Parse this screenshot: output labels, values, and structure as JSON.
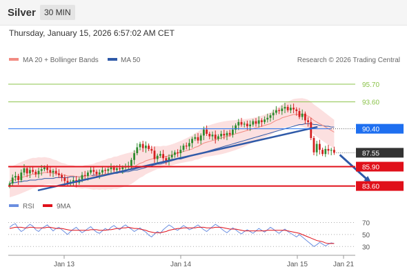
{
  "header": {
    "instrument": "Silver",
    "timeframe": "30 MIN",
    "datetime": "Thursday, January 15, 2026 6:57:02 AM CET"
  },
  "legend": {
    "ma20_label": "MA 20 + Bollinger Bands",
    "ma50_label": "MA 50",
    "credit": "Research © 2026 Trading Central",
    "rsi_label": "RSI",
    "rsi_ma_label": "9MA"
  },
  "colors": {
    "up": "#2e8b2e",
    "down": "#d42020",
    "ma20": "#f28b82",
    "ma50": "#2f5aa8",
    "resistance": "#8bc34a",
    "support": "#e0101a",
    "pivot": "#1e6ff0",
    "current": "#333333",
    "bollinger": "#fbd5d5",
    "rsi": "#6b8ee0",
    "rsi_ma": "#e0101a"
  },
  "chart_data": [
    {
      "type": "candlestick",
      "xtick_labels": [
        "Jan 13",
        "Jan 14",
        "Jan 15",
        "Jan 21"
      ],
      "ylim": [
        82.5,
        97.5
      ],
      "levels": [
        {
          "name": "resistance-2",
          "value": 95.7,
          "label": "95.70",
          "kind": "resistance"
        },
        {
          "name": "resistance-1",
          "value": 93.6,
          "label": "93.60",
          "kind": "resistance"
        },
        {
          "name": "pivot",
          "value": 90.4,
          "label": "90.40",
          "kind": "pivot"
        },
        {
          "name": "current-price",
          "value": 87.55,
          "label": "87.55",
          "kind": "current"
        },
        {
          "name": "support-1",
          "value": 85.9,
          "label": "85.90",
          "kind": "support"
        },
        {
          "name": "support-2",
          "value": 83.6,
          "label": "83.60",
          "kind": "support"
        }
      ],
      "closes": [
        83.9,
        84.6,
        84.8,
        84.3,
        85.2,
        85.7,
        85.1,
        85.5,
        85.3,
        85.0,
        85.4,
        85.6,
        85.8,
        85.5,
        85.2,
        85.4,
        85.1,
        84.9,
        84.6,
        84.2,
        83.9,
        84.1,
        84.3,
        84.0,
        84.4,
        84.9,
        84.8,
        85.2,
        85.5,
        85.3,
        85.0,
        85.2,
        85.5,
        85.4,
        85.6,
        85.8,
        85.5,
        85.7,
        85.6,
        85.8,
        85.9,
        86.0,
        86.7,
        87.5,
        88.2,
        88.6,
        88.1,
        88.4,
        88.0,
        87.8,
        86.8,
        87.2,
        87.4,
        86.9,
        86.6,
        87.0,
        87.3,
        87.6,
        87.5,
        87.9,
        88.4,
        88.3,
        88.7,
        89.2,
        89.4,
        89.0,
        89.6,
        90.3,
        89.8,
        89.5,
        89.7,
        89.2,
        89.5,
        89.8,
        89.6,
        89.9,
        89.7,
        90.3,
        90.8,
        91.2,
        90.9,
        91.0,
        90.7,
        90.9,
        91.3,
        91.0,
        91.4,
        91.2,
        91.5,
        91.7,
        92.0,
        92.3,
        92.6,
        92.5,
        92.8,
        93.0,
        92.6,
        92.9,
        92.7,
        92.5,
        91.8,
        92.2,
        91.4,
        91.2,
        89.3,
        87.6,
        88.6,
        87.9,
        87.4,
        88.0,
        87.8,
        87.9,
        87.55
      ],
      "ma20": [
        84.2,
        84.3,
        84.4,
        84.5,
        84.6,
        84.7,
        84.8,
        84.9,
        85.0,
        85.0,
        85.1,
        85.1,
        85.2,
        85.2,
        85.2,
        85.1,
        85.1,
        85.0,
        84.9,
        84.9,
        84.8,
        84.8,
        84.8,
        84.7,
        84.7,
        84.7,
        84.8,
        84.8,
        84.8,
        84.8,
        84.9,
        84.9,
        85.0,
        85.0,
        85.1,
        85.1,
        85.2,
        85.2,
        85.3,
        85.4,
        85.5,
        85.6,
        85.7,
        85.9,
        86.1,
        86.3,
        86.4,
        86.6,
        86.7,
        86.8,
        86.9,
        87.0,
        87.0,
        87.1,
        87.1,
        87.2,
        87.3,
        87.4,
        87.5,
        87.6,
        87.7,
        87.8,
        87.9,
        88.0,
        88.2,
        88.3,
        88.5,
        88.7,
        88.8,
        88.9,
        89.0,
        89.1,
        89.2,
        89.3,
        89.4,
        89.5,
        89.6,
        89.7,
        89.8,
        89.9,
        90.0,
        90.1,
        90.2,
        90.3,
        90.4,
        90.5,
        90.6,
        90.7,
        90.8,
        90.9,
        91.0,
        91.2,
        91.4,
        91.5,
        91.7,
        91.8,
        91.9,
        92.0,
        92.1,
        92.1,
        92.1,
        92.1,
        92.0,
        91.9,
        91.7,
        91.4,
        91.2,
        91.0,
        90.8,
        90.6,
        90.4,
        90.2,
        90.0
      ],
      "ma50": [
        83.9,
        84.0,
        84.0,
        84.1,
        84.1,
        84.2,
        84.2,
        84.3,
        84.3,
        84.3,
        84.4,
        84.4,
        84.5,
        84.5,
        84.5,
        84.5,
        84.6,
        84.6,
        84.6,
        84.6,
        84.6,
        84.7,
        84.7,
        84.7,
        84.7,
        84.7,
        84.8,
        84.8,
        84.8,
        84.9,
        84.9,
        84.9,
        85.0,
        85.0,
        85.0,
        85.1,
        85.1,
        85.1,
        85.2,
        85.2,
        85.3,
        85.3,
        85.4,
        85.5,
        85.5,
        85.6,
        85.7,
        85.8,
        85.9,
        86.0,
        86.1,
        86.2,
        86.2,
        86.3,
        86.4,
        86.5,
        86.6,
        86.7,
        86.8,
        86.8,
        86.9,
        87.0,
        87.1,
        87.2,
        87.3,
        87.4,
        87.5,
        87.6,
        87.7,
        87.8,
        87.9,
        88.0,
        88.1,
        88.2,
        88.3,
        88.4,
        88.5,
        88.6,
        88.7,
        88.8,
        88.9,
        89.0,
        89.1,
        89.2,
        89.3,
        89.4,
        89.5,
        89.6,
        89.7,
        89.8,
        89.9,
        90.0,
        90.1,
        90.2,
        90.3,
        90.4,
        90.5,
        90.6,
        90.7,
        90.8,
        90.9,
        90.9,
        91.0,
        91.0,
        91.0,
        90.9,
        90.9,
        90.8,
        90.8,
        90.7,
        90.7,
        90.6,
        90.6
      ],
      "bollinger_width": 1.6,
      "trendline": {
        "from": {
          "index": 10,
          "value": 83.1
        },
        "to": {
          "index": 106,
          "value": 90.6
        }
      },
      "forecast_arrow": {
        "from": {
          "index": 113,
          "value": 87.55
        },
        "to": {
          "index": 125,
          "value": 83.7
        }
      }
    },
    {
      "type": "line",
      "name": "rsi-panel",
      "yticks": [
        "70",
        "50",
        "30"
      ],
      "ylim": [
        20,
        82
      ],
      "series": [
        {
          "name": "RSI",
          "values": [
            62,
            66,
            68,
            60,
            55,
            58,
            63,
            67,
            64,
            58,
            55,
            60,
            63,
            66,
            61,
            56,
            60,
            62,
            58,
            54,
            50,
            55,
            59,
            62,
            57,
            53,
            56,
            60,
            63,
            58,
            54,
            52,
            56,
            60,
            57,
            62,
            65,
            61,
            58,
            63,
            66,
            62,
            59,
            55,
            58,
            61,
            57,
            54,
            49,
            46,
            51,
            55,
            52,
            58,
            62,
            66,
            63,
            59,
            57,
            61,
            65,
            62,
            58,
            60,
            63,
            66,
            62,
            58,
            55,
            59,
            63,
            67,
            64,
            60,
            56,
            53,
            57,
            61,
            58,
            54,
            51,
            55,
            58,
            55,
            52,
            56,
            60,
            57,
            54,
            58,
            62,
            59,
            55,
            52,
            56,
            59,
            55,
            52,
            49,
            46,
            50,
            46,
            42,
            38,
            34,
            30,
            33,
            37,
            34,
            31,
            34,
            36,
            35
          ]
        },
        {
          "name": "9MA",
          "values": [
            60,
            61,
            62,
            62,
            62,
            61,
            61,
            62,
            62,
            61,
            61,
            61,
            61,
            62,
            62,
            61,
            60,
            60,
            60,
            59,
            58,
            57,
            57,
            57,
            57,
            57,
            57,
            57,
            58,
            58,
            58,
            57,
            57,
            57,
            58,
            58,
            59,
            60,
            60,
            61,
            61,
            62,
            61,
            60,
            60,
            59,
            58,
            57,
            55,
            54,
            53,
            53,
            53,
            54,
            55,
            57,
            58,
            59,
            60,
            60,
            61,
            61,
            61,
            61,
            61,
            62,
            62,
            62,
            61,
            61,
            61,
            62,
            62,
            62,
            61,
            60,
            59,
            59,
            59,
            58,
            57,
            56,
            56,
            56,
            56,
            56,
            56,
            56,
            56,
            57,
            57,
            57,
            57,
            57,
            57,
            57,
            56,
            55,
            54,
            53,
            52,
            50,
            48,
            46,
            44,
            42,
            40,
            39,
            38,
            36,
            35,
            35,
            35
          ]
        }
      ]
    }
  ]
}
